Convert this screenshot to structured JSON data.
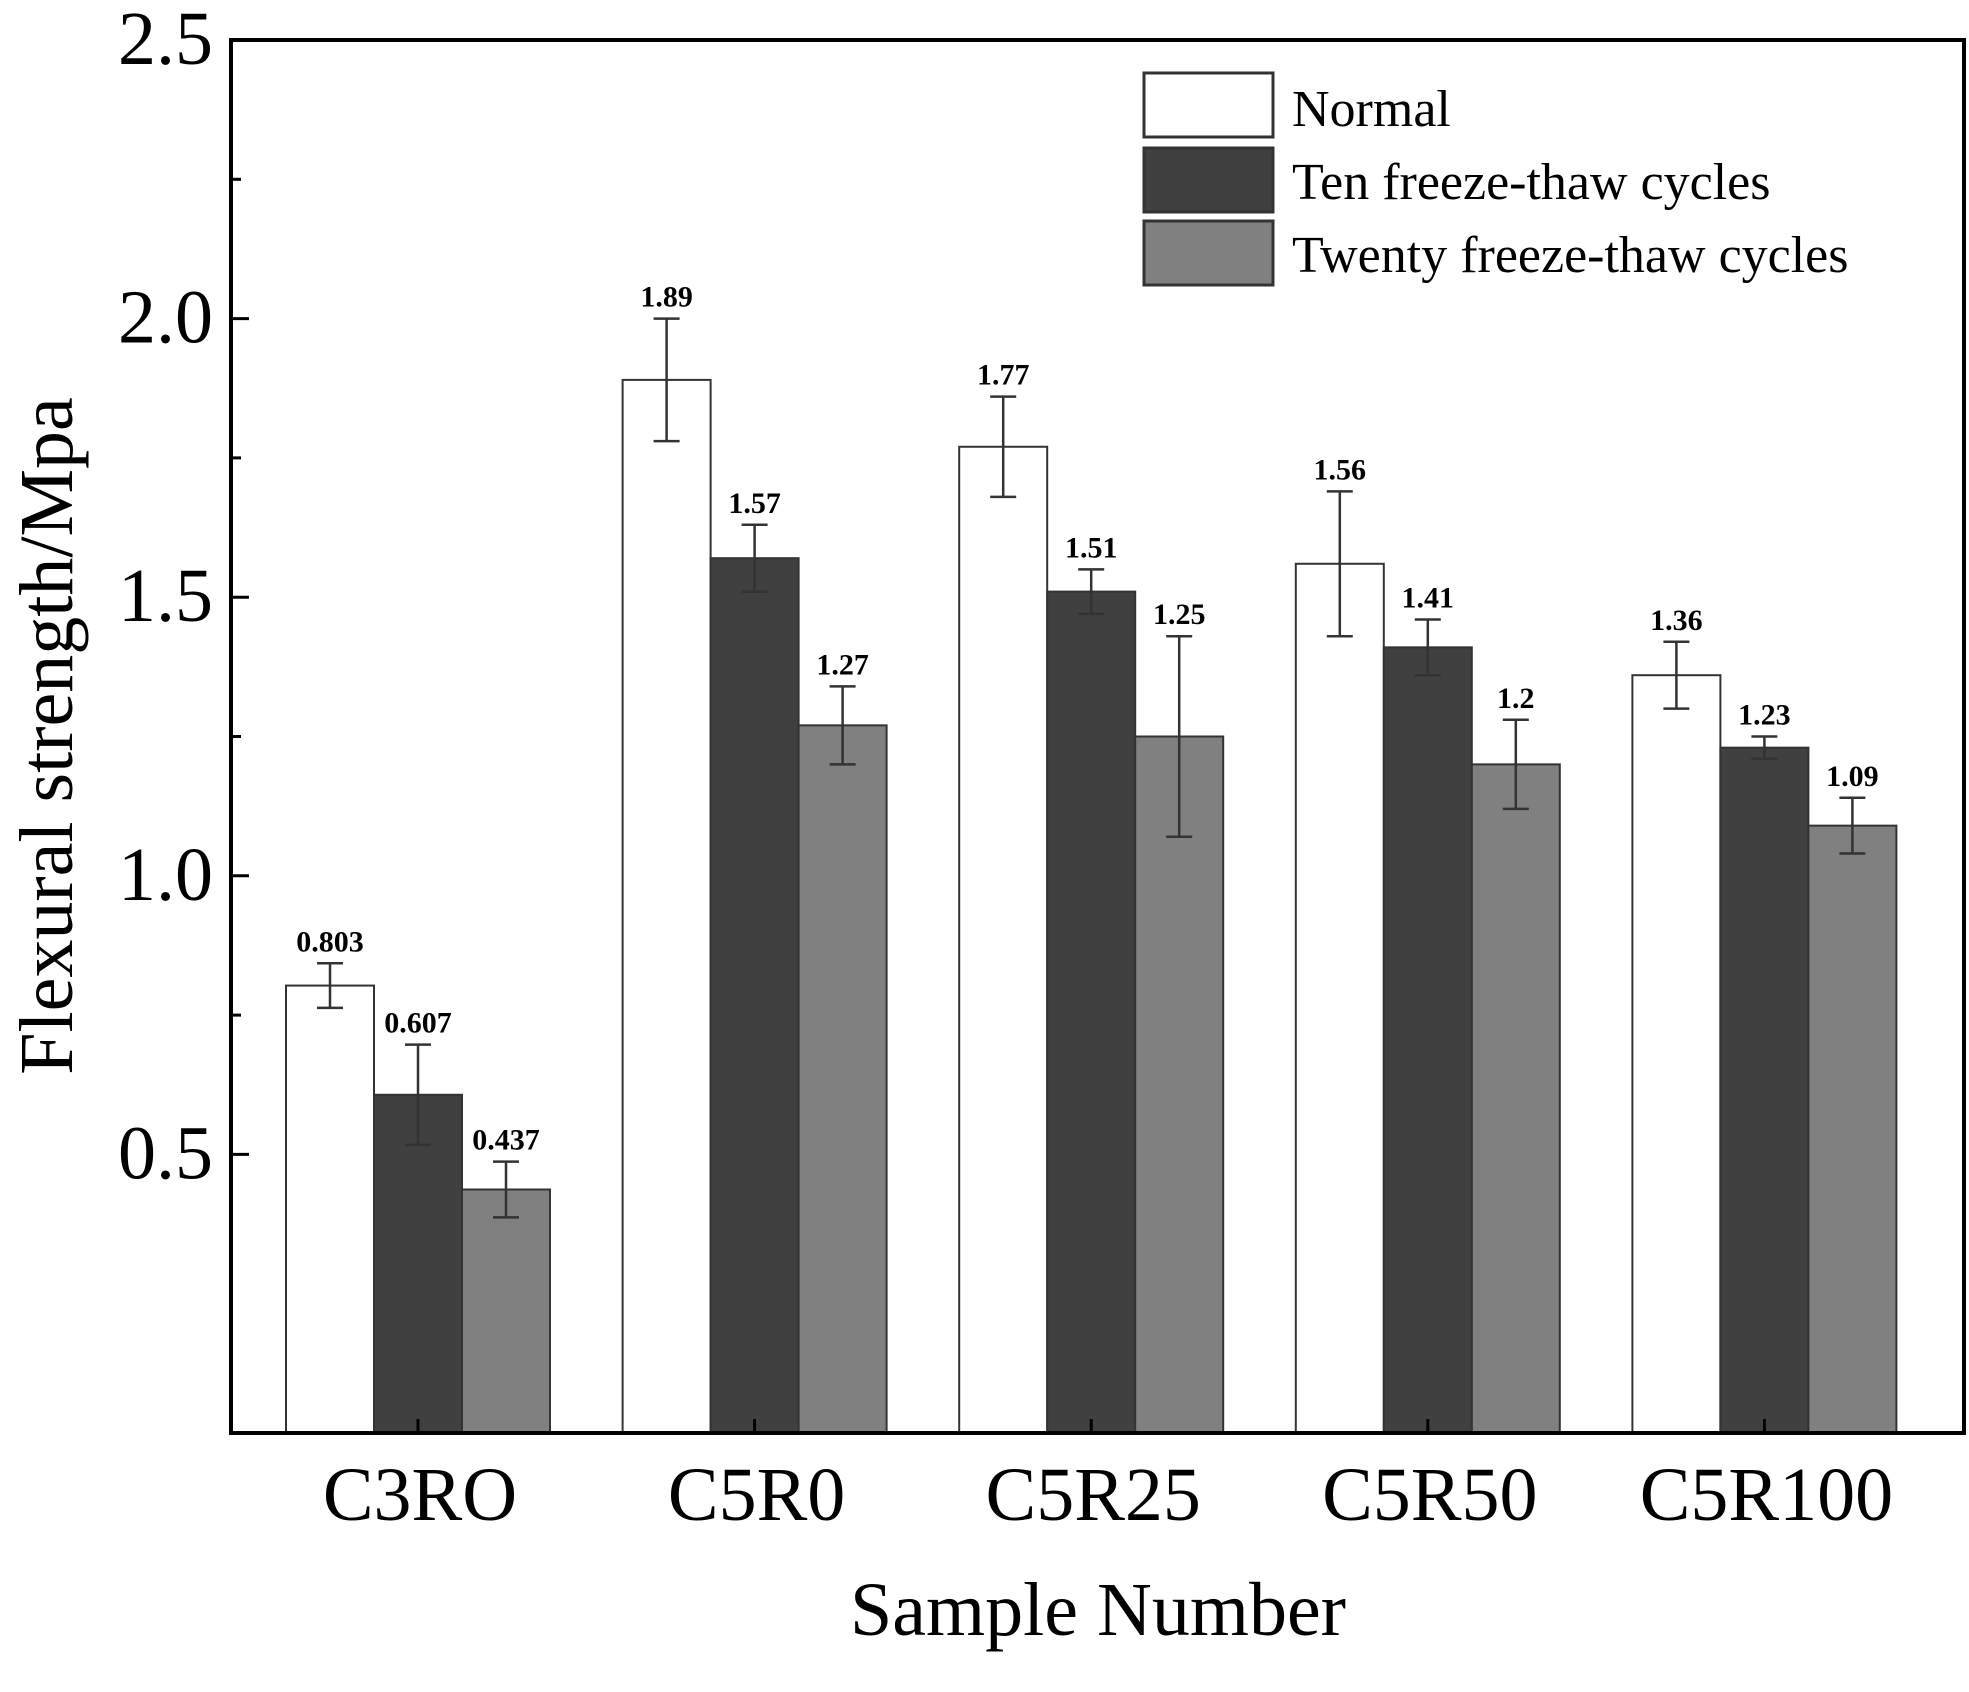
{
  "chart_data": {
    "type": "bar",
    "title": "",
    "xlabel": "Sample Number",
    "ylabel": "Flexural strength/Mpa",
    "ylim": [
      0,
      2.5
    ],
    "y_ticks": [
      "0.5",
      "1.0",
      "1.5",
      "2.0",
      "2.5"
    ],
    "categories": [
      "C3RO",
      "C5R0",
      "C5R25",
      "C5R50",
      "C5R100"
    ],
    "legend_position": "top-right",
    "series": [
      {
        "name": "Normal",
        "color": "#ffffff",
        "values": [
          0.803,
          1.89,
          1.77,
          1.56,
          1.36
        ],
        "labels": [
          "0.803",
          "1.89",
          "1.77",
          "1.56",
          "1.36"
        ],
        "errors": [
          0.04,
          0.11,
          0.09,
          0.13,
          0.06
        ]
      },
      {
        "name": "Ten freeze-thaw cycles",
        "color": "#404040",
        "values": [
          0.607,
          1.57,
          1.51,
          1.41,
          1.23
        ],
        "labels": [
          "0.607",
          "1.57",
          "1.51",
          "1.41",
          "1.23"
        ],
        "errors": [
          0.09,
          0.06,
          0.04,
          0.05,
          0.02
        ]
      },
      {
        "name": "Twenty freeze-thaw cycles",
        "color": "#808080",
        "values": [
          0.437,
          1.27,
          1.25,
          1.2,
          1.09
        ],
        "labels": [
          "0.437",
          "1.27",
          "1.25",
          "1.2",
          "1.09"
        ],
        "errors": [
          0.05,
          0.07,
          0.18,
          0.08,
          0.05
        ]
      }
    ]
  }
}
